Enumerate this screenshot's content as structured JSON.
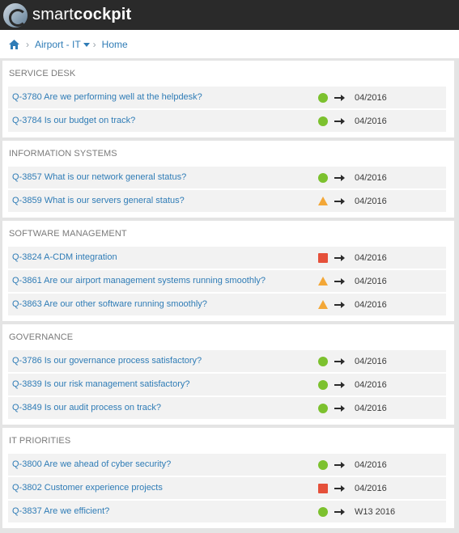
{
  "app": {
    "name_regular": "smart",
    "name_bold": "cockpit"
  },
  "breadcrumb": {
    "home_icon": "home-icon",
    "items": [
      "Airport - IT",
      "Home"
    ]
  },
  "colors": {
    "green": "#7cc12e",
    "red": "#e5503a",
    "amber": "#f3a737",
    "link": "#2f7cb6"
  },
  "sections": [
    {
      "title": "SERVICE DESK",
      "rows": [
        {
          "label": "Q-3780 Are we performing well at the helpdesk?",
          "status": "green",
          "trend": "right-arrow",
          "period": "04/2016"
        },
        {
          "label": "Q-3784 Is our budget on track?",
          "status": "green",
          "trend": "right-arrow",
          "period": "04/2016"
        }
      ]
    },
    {
      "title": "INFORMATION SYSTEMS",
      "rows": [
        {
          "label": "Q-3857 What is our network general status?",
          "status": "green",
          "trend": "right-arrow",
          "period": "04/2016"
        },
        {
          "label": "Q-3859 What is our servers general status?",
          "status": "amber",
          "trend": "right-arrow",
          "period": "04/2016"
        }
      ]
    },
    {
      "title": "SOFTWARE MANAGEMENT",
      "rows": [
        {
          "label": "Q-3824 A-CDM integration",
          "status": "red",
          "trend": "right-arrow",
          "period": "04/2016"
        },
        {
          "label": "Q-3861 Are our airport management systems running smoothly?",
          "status": "amber",
          "trend": "right-arrow",
          "period": "04/2016"
        },
        {
          "label": "Q-3863 Are our other software running smoothly?",
          "status": "amber",
          "trend": "right-arrow",
          "period": "04/2016"
        }
      ]
    },
    {
      "title": "GOVERNANCE",
      "rows": [
        {
          "label": "Q-3786 Is our governance process satisfactory?",
          "status": "green",
          "trend": "right-arrow",
          "period": "04/2016"
        },
        {
          "label": "Q-3839 Is our risk management satisfactory?",
          "status": "green",
          "trend": "right-arrow",
          "period": "04/2016"
        },
        {
          "label": "Q-3849 Is our audit process on track?",
          "status": "green",
          "trend": "right-arrow",
          "period": "04/2016"
        }
      ]
    },
    {
      "title": "IT PRIORITIES",
      "rows": [
        {
          "label": "Q-3800 Are we ahead of cyber security?",
          "status": "green",
          "trend": "right-arrow",
          "period": "04/2016"
        },
        {
          "label": "Q-3802 Customer experience projects",
          "status": "red",
          "trend": "right-arrow",
          "period": "04/2016"
        },
        {
          "label": "Q-3837 Are we efficient?",
          "status": "green",
          "trend": "right-arrow",
          "period": "W13 2016"
        }
      ]
    }
  ]
}
